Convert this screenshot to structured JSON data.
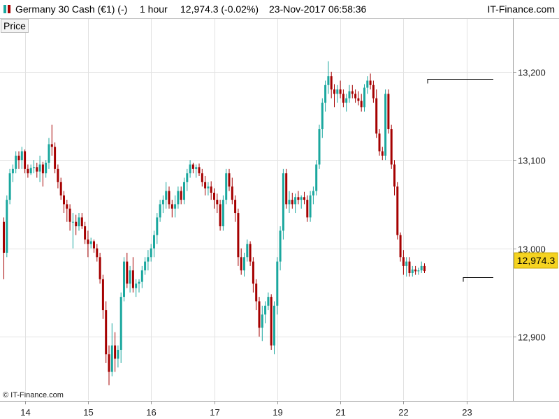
{
  "header": {
    "title": "Germany 30 Cash (€1) (-)",
    "timeframe": "1 hour",
    "last_change": "12,974.3 (-0.02%)",
    "datetime": "23-Nov-2017 06:58:36",
    "brand": "IT-Finance.com"
  },
  "panel_tab": "Price",
  "copyright": "© IT-Finance.com",
  "colors": {
    "up": "#1aa79e",
    "down": "#a50000",
    "price_tag": "#f5d320",
    "grid": "#e2e2e2"
  },
  "chart_data": {
    "type": "candlestick",
    "instrument": "Germany 30 Cash (€1)",
    "interval": "1 hour",
    "y_ticks": [
      12900,
      13000,
      13100,
      13200
    ],
    "y_tick_labels": [
      "12,900",
      "13,000",
      "13,100",
      "13,200"
    ],
    "ylim": [
      12828,
      13260
    ],
    "x_tick_labels": [
      "14",
      "15",
      "16",
      "17",
      "19",
      "21",
      "22",
      "23"
    ],
    "x_tick_bar_index": [
      7,
      28,
      49,
      70,
      91,
      112,
      133,
      154
    ],
    "last_price": 12974.3,
    "last_price_label": "12,974.3",
    "reference_lines": [
      {
        "value": 13192,
        "from_bar": 141,
        "to_bar": 163
      },
      {
        "value": 12967,
        "from_bar": 153,
        "to_bar": 163
      }
    ],
    "grid": true,
    "candles": [
      [
        13030,
        13035,
        12965,
        12995
      ],
      [
        12995,
        13060,
        12990,
        13055
      ],
      [
        13055,
        13090,
        13050,
        13085
      ],
      [
        13085,
        13095,
        13075,
        13090
      ],
      [
        13090,
        13110,
        13085,
        13105
      ],
      [
        13105,
        13110,
        13090,
        13100
      ],
      [
        13100,
        13115,
        13090,
        13110
      ],
      [
        13110,
        13112,
        13085,
        13090
      ],
      [
        13090,
        13095,
        13080,
        13085
      ],
      [
        13085,
        13095,
        13083,
        13091
      ],
      [
        13091,
        13100,
        13085,
        13092
      ],
      [
        13092,
        13097,
        13080,
        13087
      ],
      [
        13087,
        13105,
        13075,
        13095
      ],
      [
        13095,
        13098,
        13070,
        13085
      ],
      [
        13085,
        13100,
        13080,
        13097
      ],
      [
        13097,
        13125,
        13090,
        13118
      ],
      [
        13118,
        13140,
        13105,
        13115
      ],
      [
        13115,
        13120,
        13085,
        13090
      ],
      [
        13090,
        13095,
        13068,
        13075
      ],
      [
        13075,
        13080,
        13055,
        13060
      ],
      [
        13060,
        13065,
        13040,
        13050
      ],
      [
        13050,
        13055,
        13030,
        13045
      ],
      [
        13045,
        13050,
        13020,
        13030
      ],
      [
        13030,
        13040,
        13000,
        13030
      ],
      [
        13030,
        13038,
        13015,
        13025
      ],
      [
        13025,
        13040,
        13020,
        13035
      ],
      [
        13035,
        13040,
        13022,
        13025
      ],
      [
        13025,
        13030,
        13005,
        13010
      ],
      [
        13010,
        13020,
        12990,
        13005
      ],
      [
        13005,
        13012,
        13000,
        13008
      ],
      [
        13008,
        13010,
        12995,
        13000
      ],
      [
        13000,
        13005,
        12985,
        12990
      ],
      [
        12990,
        12995,
        12960,
        12965
      ],
      [
        12965,
        12970,
        12920,
        12930
      ],
      [
        12930,
        12940,
        12870,
        12880
      ],
      [
        12880,
        12890,
        12845,
        12860
      ],
      [
        12860,
        12915,
        12855,
        12890
      ],
      [
        12890,
        12905,
        12860,
        12875
      ],
      [
        12875,
        12890,
        12865,
        12885
      ],
      [
        12885,
        12950,
        12870,
        12945
      ],
      [
        12945,
        12990,
        12940,
        12985
      ],
      [
        12985,
        12995,
        12955,
        12960
      ],
      [
        12960,
        12980,
        12950,
        12975
      ],
      [
        12975,
        12990,
        12950,
        12955
      ],
      [
        12955,
        12965,
        12945,
        12960
      ],
      [
        12960,
        12965,
        12950,
        12962
      ],
      [
        12962,
        12980,
        12955,
        12975
      ],
      [
        12975,
        12990,
        12970,
        12985
      ],
      [
        12985,
        12998,
        12975,
        12990
      ],
      [
        12990,
        13005,
        12985,
        13000
      ],
      [
        13000,
        13020,
        12990,
        13015
      ],
      [
        13015,
        13040,
        13005,
        13035
      ],
      [
        13035,
        13055,
        13030,
        13050
      ],
      [
        13050,
        13060,
        13040,
        13055
      ],
      [
        13055,
        13075,
        13045,
        13065
      ],
      [
        13065,
        13070,
        13045,
        13050
      ],
      [
        13050,
        13055,
        13035,
        13045
      ],
      [
        13045,
        13060,
        13035,
        13050
      ],
      [
        13050,
        13070,
        13045,
        13065
      ],
      [
        13065,
        13070,
        13050,
        13055
      ],
      [
        13055,
        13080,
        13050,
        13075
      ],
      [
        13075,
        13090,
        13065,
        13085
      ],
      [
        13085,
        13100,
        13080,
        13095
      ],
      [
        13095,
        13097,
        13085,
        13090
      ],
      [
        13090,
        13095,
        13080,
        13092
      ],
      [
        13092,
        13096,
        13082,
        13085
      ],
      [
        13085,
        13090,
        13070,
        13075
      ],
      [
        13075,
        13082,
        13060,
        13068
      ],
      [
        13068,
        13075,
        13060,
        13070
      ],
      [
        13070,
        13076,
        13055,
        13063
      ],
      [
        13063,
        13068,
        13045,
        13055
      ],
      [
        13055,
        13062,
        13040,
        13050
      ],
      [
        13050,
        13055,
        13020,
        13025
      ],
      [
        13025,
        13060,
        13020,
        13055
      ],
      [
        13055,
        13090,
        13050,
        13085
      ],
      [
        13085,
        13090,
        13065,
        13070
      ],
      [
        13070,
        13080,
        13050,
        13055
      ],
      [
        13055,
        13060,
        13030,
        13040
      ],
      [
        13040,
        13045,
        12980,
        12990
      ],
      [
        12990,
        13000,
        12970,
        12975
      ],
      [
        12975,
        12995,
        12968,
        12990
      ],
      [
        12990,
        13010,
        12985,
        13005
      ],
      [
        13005,
        13008,
        12980,
        12985
      ],
      [
        12985,
        12990,
        12950,
        12960
      ],
      [
        12960,
        12965,
        12930,
        12940
      ],
      [
        12940,
        12945,
        12900,
        12910
      ],
      [
        12910,
        12935,
        12895,
        12925
      ],
      [
        12925,
        12940,
        12915,
        12935
      ],
      [
        12935,
        12950,
        12930,
        12945
      ],
      [
        12945,
        12948,
        12885,
        12890
      ],
      [
        12890,
        12940,
        12880,
        12935
      ],
      [
        12935,
        12990,
        12925,
        12985
      ],
      [
        12985,
        13025,
        12975,
        13020
      ],
      [
        13020,
        13090,
        13010,
        13085
      ],
      [
        13085,
        13090,
        13045,
        13050
      ],
      [
        13050,
        13065,
        13040,
        13055
      ],
      [
        13055,
        13063,
        13045,
        13050
      ],
      [
        13050,
        13062,
        13040,
        13058
      ],
      [
        13058,
        13065,
        13050,
        13055
      ],
      [
        13055,
        13060,
        13045,
        13058
      ],
      [
        13058,
        13064,
        13050,
        13055
      ],
      [
        13055,
        13060,
        13030,
        13035
      ],
      [
        13035,
        13065,
        13030,
        13060
      ],
      [
        13060,
        13070,
        13050,
        13065
      ],
      [
        13065,
        13100,
        13060,
        13095
      ],
      [
        13095,
        13140,
        13090,
        13135
      ],
      [
        13135,
        13170,
        13125,
        13165
      ],
      [
        13165,
        13190,
        13155,
        13185
      ],
      [
        13185,
        13212,
        13175,
        13195
      ],
      [
        13195,
        13200,
        13170,
        13180
      ],
      [
        13180,
        13186,
        13160,
        13175
      ],
      [
        13175,
        13185,
        13165,
        13180
      ],
      [
        13180,
        13190,
        13170,
        13175
      ],
      [
        13175,
        13180,
        13160,
        13165
      ],
      [
        13165,
        13175,
        13155,
        13170
      ],
      [
        13170,
        13185,
        13165,
        13178
      ],
      [
        13178,
        13185,
        13170,
        13175
      ],
      [
        13175,
        13180,
        13165,
        13170
      ],
      [
        13170,
        13178,
        13162,
        13167
      ],
      [
        13167,
        13175,
        13155,
        13160
      ],
      [
        13160,
        13186,
        13155,
        13182
      ],
      [
        13182,
        13195,
        13175,
        13190
      ],
      [
        13190,
        13198,
        13180,
        13185
      ],
      [
        13185,
        13190,
        13165,
        13170
      ],
      [
        13170,
        13180,
        13125,
        13130
      ],
      [
        13130,
        13135,
        13105,
        13110
      ],
      [
        13110,
        13115,
        13100,
        13105
      ],
      [
        13105,
        13180,
        13100,
        13175
      ],
      [
        13175,
        13180,
        13130,
        13135
      ],
      [
        13135,
        13140,
        13090,
        13095
      ],
      [
        13095,
        13100,
        13060,
        13070
      ],
      [
        13070,
        13075,
        13010,
        13015
      ],
      [
        13015,
        13018,
        12985,
        12990
      ],
      [
        12990,
        12998,
        12970,
        12980
      ],
      [
        12980,
        12990,
        12968,
        12985
      ],
      [
        12985,
        12990,
        12968,
        12972
      ],
      [
        12972,
        12980,
        12968,
        12976
      ],
      [
        12976,
        12980,
        12970,
        12974
      ],
      [
        12974,
        12978,
        12970,
        12975
      ],
      [
        12975,
        12985,
        12972,
        12980
      ],
      [
        12980,
        12983,
        12972,
        12974.3
      ]
    ]
  }
}
